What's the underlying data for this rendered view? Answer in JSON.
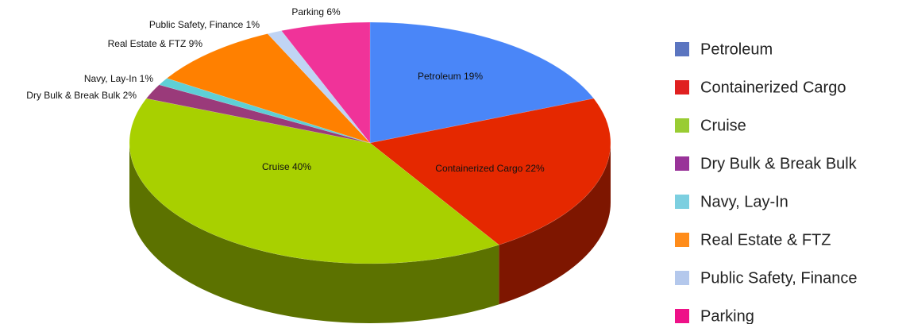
{
  "chart_data": {
    "type": "pie3d",
    "categories": [
      "Petroleum",
      "Containerized Cargo",
      "Cruise",
      "Dry Bulk & Break Bulk",
      "Navy, Lay-In",
      "Real Estate & FTZ",
      "Public Safety, Finance",
      "Parking"
    ],
    "values": [
      19,
      22,
      40,
      2,
      1,
      9,
      1,
      6
    ],
    "value_labels": [
      "Petroleum 19%",
      "Containerized Cargo 22%",
      "Cruise 40%",
      "Dry Bulk & Break Bulk 2%",
      "Navy, Lay-In 1%",
      "Real Estate & FTZ 9%",
      "Public Safety, Finance 1%",
      "Parking 6%"
    ],
    "colors": [
      "#4a86f8",
      "#e52800",
      "#a8d000",
      "#9a3a7a",
      "#5ecfd6",
      "#ff8000",
      "#c0d4f4",
      "#f03399"
    ],
    "legend_colors": [
      "#5b75c0",
      "#e02020",
      "#99cc33",
      "#993399",
      "#7ccfe0",
      "#ff8c1a",
      "#b4c8ec",
      "#ee1188"
    ],
    "legend": "right"
  }
}
